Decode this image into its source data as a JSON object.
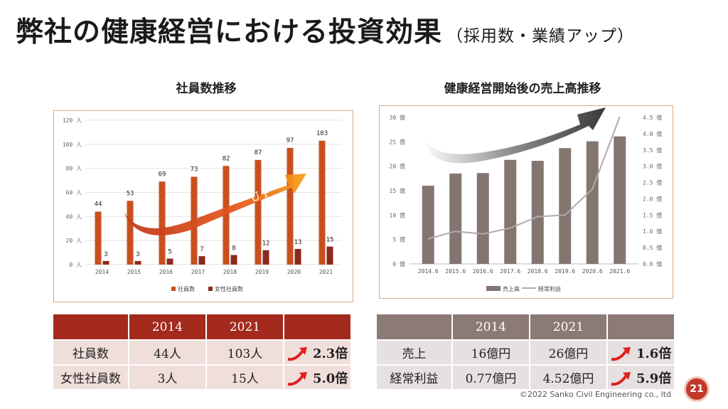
{
  "title": {
    "main": "弊社の健康経営における投資効果",
    "sub": "（採用数・業績アップ）"
  },
  "charts": [
    {
      "heading": "社員数推移",
      "chart_data": {
        "type": "bar",
        "title": "社員数推移",
        "categories": [
          "2014",
          "2015",
          "2016",
          "2017",
          "2018",
          "2019",
          "2020",
          "2021"
        ],
        "series": [
          {
            "name": "社員数",
            "values": [
              44,
              53,
              69,
              73,
              82,
              87,
              97,
              103
            ],
            "color": "#c8501e"
          },
          {
            "name": "女性社員数",
            "values": [
              3,
              3,
              5,
              7,
              8,
              12,
              13,
              15
            ],
            "color": "#8b2a1c"
          }
        ],
        "ylim": [
          0,
          120
        ],
        "yticks": [
          0,
          20,
          40,
          60,
          80,
          100,
          120
        ],
        "yunit": "人",
        "grid": true,
        "legend": "bottom",
        "annotation": "UP"
      }
    },
    {
      "heading": "健康経営開始後の売上高推移",
      "chart_data": {
        "type": "bar",
        "title": "健康経営開始後の売上高推移",
        "categories": [
          "2014.6",
          "2015.6",
          "2016.6",
          "2017.6",
          "2018.6",
          "2019.6",
          "2020.6",
          "2021.6"
        ],
        "series": [
          {
            "name": "売上高",
            "type": "bar",
            "axis": "left",
            "values": [
              16,
              18.5,
              18.6,
              21.3,
              21.1,
              23.7,
              25.1,
              26.1
            ],
            "color": "#857571"
          },
          {
            "name": "経常利益",
            "type": "line",
            "axis": "right",
            "values": [
              0.77,
              1.0,
              0.92,
              1.1,
              1.45,
              1.5,
              2.3,
              4.52
            ],
            "color": "#b3aaa7"
          }
        ],
        "ylim": [
          0,
          30
        ],
        "yticks": [
          0,
          5,
          10,
          15,
          20,
          25,
          30
        ],
        "yunit": "億",
        "y2lim": [
          0,
          4.5
        ],
        "y2ticks": [
          "0.0",
          "0.5",
          "1.0",
          "1.5",
          "2.0",
          "2.5",
          "3.0",
          "3.5",
          "4.0",
          "4.5"
        ],
        "grid": false,
        "legend": "bottom",
        "annotation": "UP"
      }
    }
  ],
  "tables": [
    {
      "headers": [
        "",
        "2014",
        "2021",
        ""
      ],
      "rows": [
        {
          "label": "社員数",
          "v2014": "44人",
          "v2021": "103人",
          "ratio": "2.3倍"
        },
        {
          "label": "女性社員数",
          "v2014": "3人",
          "v2021": "15人",
          "ratio": "5.0倍"
        }
      ],
      "accent": "#a32a1c"
    },
    {
      "headers": [
        "",
        "2014",
        "2021",
        ""
      ],
      "rows": [
        {
          "label": "売上",
          "v2014": "16億円",
          "v2021": "26億円",
          "ratio": "1.6倍"
        },
        {
          "label": "経常利益",
          "v2014": "0.77億円",
          "v2021": "4.52億円",
          "ratio": "5.9倍"
        }
      ],
      "accent": "#8b7a76"
    }
  ],
  "footer": "©2022 Sanko Civil Engineering co., ltd",
  "page_number": "21"
}
